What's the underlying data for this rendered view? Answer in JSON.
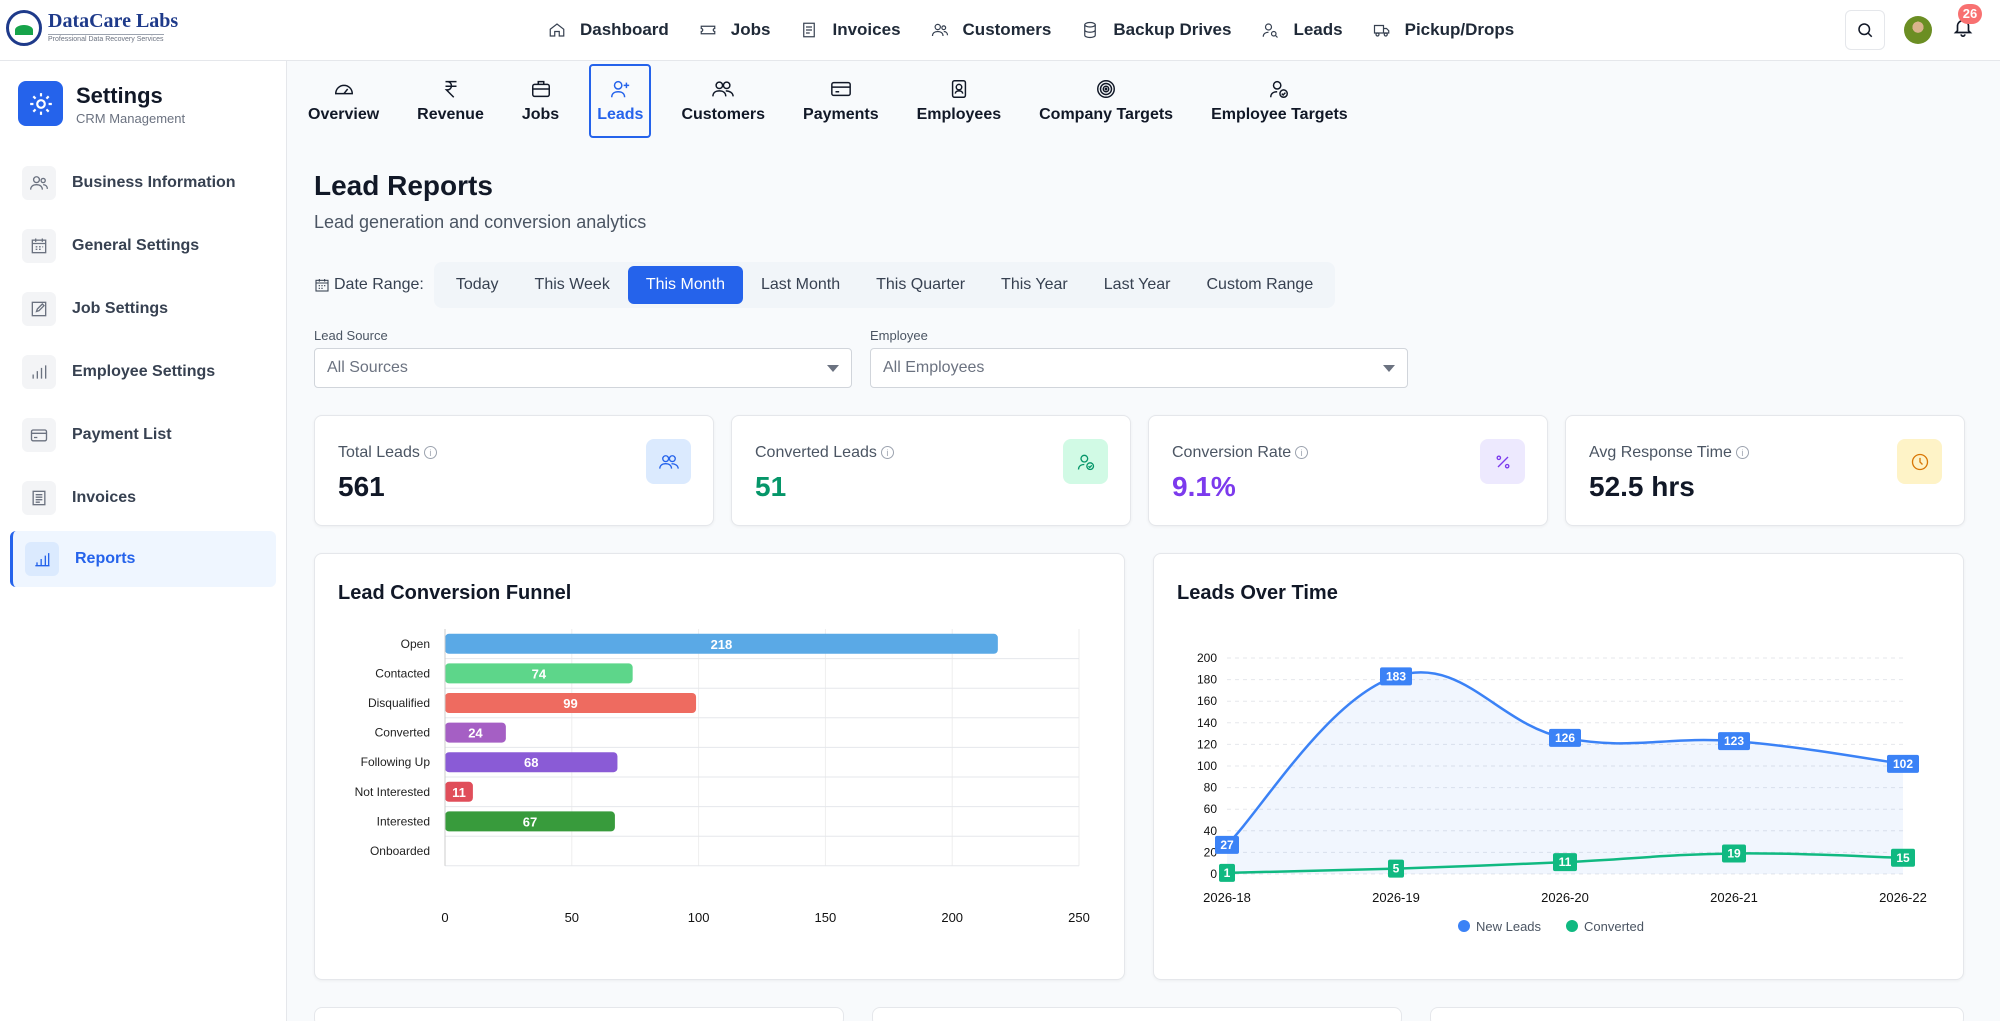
{
  "brand": {
    "name": "DataCare Labs",
    "tagline": "Professional Data Recovery Services"
  },
  "topnav": {
    "items": [
      {
        "label": "Dashboard",
        "icon": "home-icon"
      },
      {
        "label": "Jobs",
        "icon": "ticket-icon"
      },
      {
        "label": "Invoices",
        "icon": "invoice-icon"
      },
      {
        "label": "Customers",
        "icon": "users-icon"
      },
      {
        "label": "Backup Drives",
        "icon": "database-icon"
      },
      {
        "label": "Leads",
        "icon": "user-search-icon"
      },
      {
        "label": "Pickup/Drops",
        "icon": "truck-icon"
      }
    ],
    "notification_count": "26"
  },
  "sidebar": {
    "title": "Settings",
    "subtitle": "CRM Management",
    "items": [
      {
        "label": "Business Information",
        "icon": "users-icon",
        "active": false
      },
      {
        "label": "General Settings",
        "icon": "calendar-icon",
        "active": false
      },
      {
        "label": "Job Settings",
        "icon": "edit-icon",
        "active": false
      },
      {
        "label": "Employee Settings",
        "icon": "bar-chart-icon",
        "active": false
      },
      {
        "label": "Payment List",
        "icon": "credit-card-icon",
        "active": false
      },
      {
        "label": "Invoices",
        "icon": "document-icon",
        "active": false
      },
      {
        "label": "Reports",
        "icon": "bar-chart-icon",
        "active": true
      }
    ]
  },
  "report_tabs": [
    {
      "label": "Overview",
      "icon": "gauge-icon",
      "active": false
    },
    {
      "label": "Revenue",
      "icon": "rupee-icon",
      "active": false
    },
    {
      "label": "Jobs",
      "icon": "briefcase-icon",
      "active": false
    },
    {
      "label": "Leads",
      "icon": "user-plus-icon",
      "active": true
    },
    {
      "label": "Customers",
      "icon": "users-icon",
      "active": false
    },
    {
      "label": "Payments",
      "icon": "credit-card-icon",
      "active": false
    },
    {
      "label": "Employees",
      "icon": "id-badge-icon",
      "active": false
    },
    {
      "label": "Company Targets",
      "icon": "target-icon",
      "active": false
    },
    {
      "label": "Employee Targets",
      "icon": "user-check-icon",
      "active": false
    }
  ],
  "page": {
    "title": "Lead Reports",
    "subtitle": "Lead generation and conversion analytics"
  },
  "date_range": {
    "label": "Date Range:",
    "options": [
      "Today",
      "This Week",
      "This Month",
      "Last Month",
      "This Quarter",
      "This Year",
      "Last Year",
      "Custom Range"
    ],
    "selected": "This Month"
  },
  "filters": {
    "lead_source": {
      "label": "Lead Source",
      "value": "All Sources"
    },
    "employee": {
      "label": "Employee",
      "value": "All Employees"
    }
  },
  "stats": [
    {
      "label": "Total Leads",
      "value": "561",
      "color": "#111827",
      "icon": "users-icon",
      "icon_bg": "#dbeafe",
      "icon_color": "#2563eb"
    },
    {
      "label": "Converted Leads",
      "value": "51",
      "color": "#059669",
      "icon": "user-check-icon",
      "icon_bg": "#d1fae5",
      "icon_color": "#059669"
    },
    {
      "label": "Conversion Rate",
      "value": "9.1%",
      "color": "#7c3aed",
      "icon": "percent-icon",
      "icon_bg": "#ede9fe",
      "icon_color": "#7c3aed"
    },
    {
      "label": "Avg Response Time",
      "value": "52.5 hrs",
      "color": "#111827",
      "icon": "clock-icon",
      "icon_bg": "#fef3c7",
      "icon_color": "#d97706"
    }
  ],
  "chart_data": [
    {
      "type": "bar",
      "orientation": "horizontal",
      "title": "Lead Conversion Funnel",
      "categories": [
        "Open",
        "Contacted",
        "Disqualified",
        "Converted",
        "Following Up",
        "Not Interested",
        "Interested",
        "Onboarded"
      ],
      "values": [
        218,
        74,
        99,
        24,
        68,
        11,
        67,
        0
      ],
      "colors": [
        "#5aa9e6",
        "#5dd68a",
        "#ee6b60",
        "#a55fc4",
        "#8a5bd6",
        "#e04e5a",
        "#389b3c",
        "#999999"
      ],
      "xlim": [
        0,
        250
      ],
      "xticks": [
        0,
        50,
        100,
        150,
        200,
        250
      ],
      "grid": true,
      "data_labels": true
    },
    {
      "type": "line",
      "title": "Leads Over Time",
      "x": [
        "2026-18",
        "2026-19",
        "2026-20",
        "2026-21",
        "2026-22"
      ],
      "series": [
        {
          "name": "New Leads",
          "values": [
            27,
            183,
            126,
            123,
            102
          ],
          "color": "#3b82f6",
          "fill": true
        },
        {
          "name": "Converted",
          "values": [
            1,
            5,
            11,
            19,
            15
          ],
          "color": "#10b981",
          "fill": false
        }
      ],
      "ylim": [
        0,
        200
      ],
      "yticks": [
        0,
        20,
        40,
        60,
        80,
        100,
        120,
        140,
        160,
        180,
        200
      ],
      "grid": true,
      "legend": "bottom",
      "data_labels": true
    }
  ]
}
